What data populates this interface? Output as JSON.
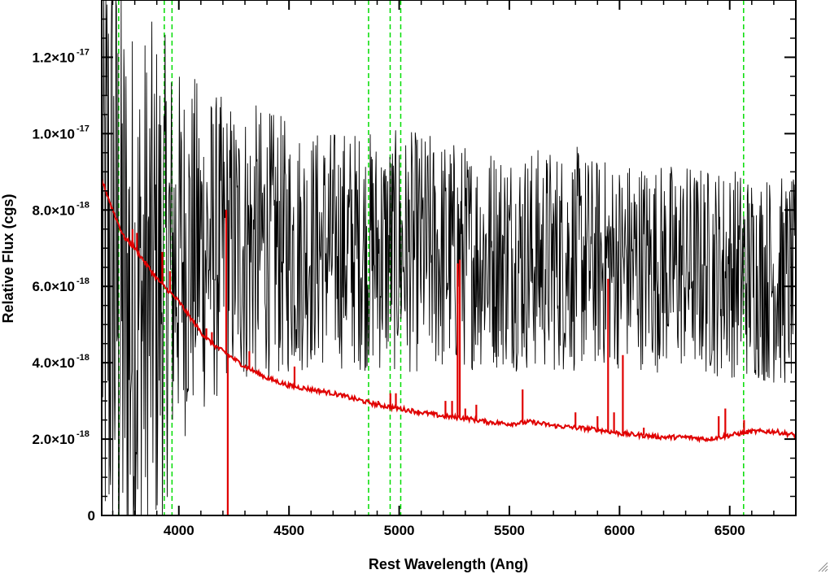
{
  "chart_data": {
    "type": "line",
    "title": "",
    "xlabel": "Rest Wavelength (Ang)",
    "ylabel": "Relative Flux (cgs)",
    "xlim": [
      3650,
      6800
    ],
    "ylim": [
      0,
      1.35e-17
    ],
    "x_ticks": [
      4000,
      4500,
      5000,
      5500,
      6000,
      6500
    ],
    "x_tick_labels": [
      "4000",
      "4500",
      "5000",
      "5500",
      "6000",
      "6500"
    ],
    "y_ticks": [
      {
        "value": 0,
        "mantissa": "0",
        "exponent": ""
      },
      {
        "value": 2e-18,
        "mantissa": "2.0×10",
        "exponent": "-18"
      },
      {
        "value": 4e-18,
        "mantissa": "4.0×10",
        "exponent": "-18"
      },
      {
        "value": 6e-18,
        "mantissa": "6.0×10",
        "exponent": "-18"
      },
      {
        "value": 8e-18,
        "mantissa": "8.0×10",
        "exponent": "-18"
      },
      {
        "value": 1e-17,
        "mantissa": "1.0×10",
        "exponent": "-17"
      },
      {
        "value": 1.2e-17,
        "mantissa": "1.2×10",
        "exponent": "-17"
      }
    ],
    "series": [
      {
        "color": "#000000",
        "style": "noisy observed spectrum",
        "x": [
          3660,
          3700,
          3750,
          3800,
          3850,
          3900,
          3950,
          4000,
          4100,
          4200,
          4300,
          4400,
          4500,
          4600,
          4700,
          4800,
          4900,
          5000,
          5100,
          5200,
          5300,
          5400,
          5500,
          5600,
          5700,
          5800,
          5900,
          6000,
          6100,
          6200,
          6300,
          6400,
          6500,
          6600,
          6700,
          6800
        ],
        "values": [
          7e-18,
          6.5e-18,
          5.5e-18,
          5e-18,
          5.5e-18,
          6e-18,
          6.5e-18,
          6.8e-18,
          7e-18,
          7e-18,
          7.1e-18,
          7.1e-18,
          7e-18,
          7e-18,
          7e-18,
          7e-18,
          6.9e-18,
          6.9e-18,
          6.9e-18,
          6.8e-18,
          6.8e-18,
          6.8e-18,
          6.8e-18,
          6.7e-18,
          6.7e-18,
          6.7e-18,
          6.6e-18,
          6.6e-18,
          6.6e-18,
          6.5e-18,
          6.5e-18,
          6.4e-18,
          6.4e-18,
          6.3e-18,
          6.2e-18,
          6e-18
        ],
        "noise_amplitude": [
          1e-17,
          1e-17,
          9e-18,
          8e-18,
          7.5e-18,
          7e-18,
          6e-18,
          5e-18,
          4.5e-18,
          4e-18,
          3.8e-18,
          3.6e-18,
          3.4e-18,
          3.2e-18,
          3.2e-18,
          3.2e-18,
          3.2e-18,
          3.2e-18,
          3.2e-18,
          3.2e-18,
          3e-18,
          3e-18,
          3e-18,
          3e-18,
          3e-18,
          3e-18,
          2.8e-18,
          2.8e-18,
          2.8e-18,
          2.8e-18,
          2.8e-18,
          2.8e-18,
          2.8e-18,
          2.8e-18,
          2.8e-18,
          2.8e-18
        ]
      },
      {
        "color": "#e00000",
        "style": "continuum model",
        "x": [
          3650,
          3700,
          3750,
          3800,
          3850,
          3900,
          3950,
          4000,
          4050,
          4100,
          4150,
          4200,
          4250,
          4300,
          4400,
          4500,
          4600,
          4700,
          4800,
          4900,
          5000,
          5100,
          5200,
          5300,
          5400,
          5500,
          5600,
          5700,
          5800,
          5900,
          6000,
          6100,
          6200,
          6300,
          6400,
          6500,
          6600,
          6700,
          6800
        ],
        "values": [
          8.8e-18,
          8e-18,
          7.3e-18,
          7e-18,
          6.6e-18,
          6.2e-18,
          5.9e-18,
          5.6e-18,
          5.2e-18,
          4.8e-18,
          4.5e-18,
          4.3e-18,
          4.1e-18,
          3.9e-18,
          3.6e-18,
          3.4e-18,
          3.3e-18,
          3.2e-18,
          3.05e-18,
          2.9e-18,
          2.8e-18,
          2.7e-18,
          2.6e-18,
          2.55e-18,
          2.45e-18,
          2.4e-18,
          2.45e-18,
          2.35e-18,
          2.3e-18,
          2.25e-18,
          2.15e-18,
          2.1e-18,
          2.05e-18,
          2.05e-18,
          2e-18,
          2.1e-18,
          2.2e-18,
          2.2e-18,
          2.1e-18
        ],
        "spikes": [
          {
            "x": 3790,
            "value": 7.5e-18
          },
          {
            "x": 3810,
            "value": 7.4e-18
          },
          {
            "x": 3925,
            "value": 6.9e-18
          },
          {
            "x": 3960,
            "value": 6.4e-18
          },
          {
            "x": 4125,
            "value": 4.9e-18
          },
          {
            "x": 4150,
            "value": 4.8e-18
          },
          {
            "x": 4215,
            "value": 8e-18
          },
          {
            "x": 4222,
            "value": 0
          },
          {
            "x": 4320,
            "value": 4.3e-18
          },
          {
            "x": 4525,
            "value": 3.9e-18
          },
          {
            "x": 4905,
            "value": 3e-18
          },
          {
            "x": 4960,
            "value": 3.2e-18
          },
          {
            "x": 4985,
            "value": 3.2e-18
          },
          {
            "x": 5210,
            "value": 3e-18
          },
          {
            "x": 5240,
            "value": 3e-18
          },
          {
            "x": 5265,
            "value": 6.6e-18
          },
          {
            "x": 5275,
            "value": 6.7e-18
          },
          {
            "x": 5300,
            "value": 2.8e-18
          },
          {
            "x": 5350,
            "value": 2.9e-18
          },
          {
            "x": 5560,
            "value": 3.3e-18
          },
          {
            "x": 5800,
            "value": 2.7e-18
          },
          {
            "x": 5900,
            "value": 2.6e-18
          },
          {
            "x": 5948,
            "value": 6.2e-18
          },
          {
            "x": 5975,
            "value": 2.7e-18
          },
          {
            "x": 6015,
            "value": 4.2e-18
          },
          {
            "x": 6110,
            "value": 2.3e-18
          },
          {
            "x": 6450,
            "value": 2.6e-18
          },
          {
            "x": 6480,
            "value": 2.8e-18
          },
          {
            "x": 6565,
            "value": 2.5e-18
          }
        ]
      }
    ],
    "reference_lines": {
      "color": "#00dd00",
      "style": "dashed",
      "x": [
        3727,
        3934,
        3969,
        4861,
        4959,
        5007,
        6563
      ]
    },
    "grid": false,
    "legend": "none"
  }
}
